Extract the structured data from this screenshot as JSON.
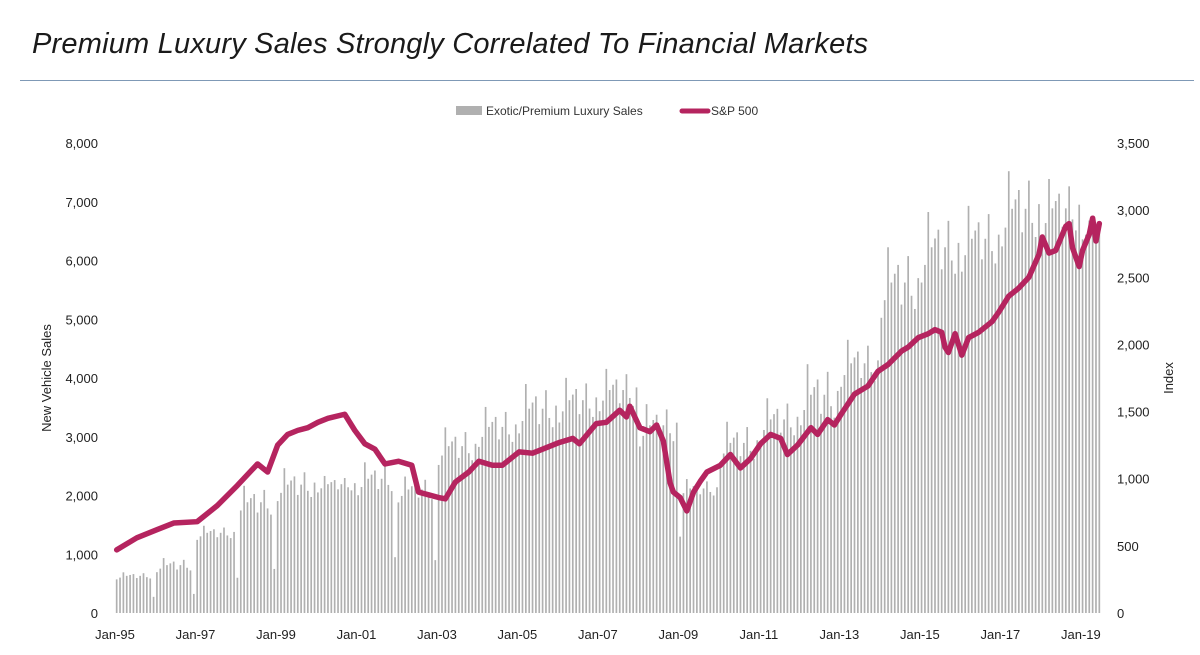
{
  "header": {
    "title": "Premium Luxury Sales Strongly Correlated To Financial Markets"
  },
  "colors": {
    "bars": "#b0b0b0",
    "line": "#b5245f",
    "rule": "#7f99b6"
  },
  "chart_data": {
    "type": "bar+line",
    "legend": {
      "position": "top-center",
      "entries": [
        "Exotic/Premium Luxury Sales",
        "S&P 500"
      ]
    },
    "xlabel": "",
    "ylabel": "New Vehicle Sales",
    "y2label": "Index",
    "ylim": [
      0,
      8000
    ],
    "y2lim": [
      0,
      3500
    ],
    "yticks": [
      "8,000",
      "7,000",
      "6,000",
      "5,000",
      "4,000",
      "3,000",
      "2,000",
      "1,000",
      "0"
    ],
    "y2ticks": [
      "3,500",
      "3,000",
      "2,500",
      "2,000",
      "1,500",
      "1,000",
      "500",
      "0"
    ],
    "xticks": [
      "Jan-95",
      "Jan-97",
      "Jan-99",
      "Jan-01",
      "Jan-03",
      "Jan-05",
      "Jan-07",
      "Jan-09",
      "Jan-11",
      "Jan-13",
      "Jan-15",
      "Jan-17",
      "Jan-19"
    ],
    "x_start": "Jan-95",
    "x_end": "Jun-19",
    "series": [
      {
        "name": "Exotic/Premium Luxury Sales",
        "kind": "bar",
        "axis": "left",
        "frequency": "monthly",
        "annual_baseline": [
          {
            "year": 1995,
            "value": 550
          },
          {
            "year": 1996,
            "value": 650
          },
          {
            "year": 1997,
            "value": 1200
          },
          {
            "year": 1998,
            "value": 1500
          },
          {
            "year": 1999,
            "value": 1800
          },
          {
            "year": 2000,
            "value": 2000
          },
          {
            "year": 2001,
            "value": 1900
          },
          {
            "year": 2002,
            "value": 1800
          },
          {
            "year": 2003,
            "value": 2400
          },
          {
            "year": 2004,
            "value": 2700
          },
          {
            "year": 2005,
            "value": 2900
          },
          {
            "year": 2006,
            "value": 3100
          },
          {
            "year": 2007,
            "value": 3300
          },
          {
            "year": 2008,
            "value": 2700
          },
          {
            "year": 2009,
            "value": 1900
          },
          {
            "year": 2010,
            "value": 2400
          },
          {
            "year": 2011,
            "value": 2800
          },
          {
            "year": 2012,
            "value": 3000
          },
          {
            "year": 2013,
            "value": 3700
          },
          {
            "year": 2014,
            "value": 4800
          },
          {
            "year": 2015,
            "value": 5400
          },
          {
            "year": 2016,
            "value": 5600
          },
          {
            "year": 2017,
            "value": 6000
          },
          {
            "year": 2018,
            "value": 6200
          },
          {
            "year": 2019,
            "value": 6300
          }
        ],
        "annual_peak": [
          {
            "year": 1995,
            "value": 700
          },
          {
            "year": 1996,
            "value": 950
          },
          {
            "year": 1997,
            "value": 1500
          },
          {
            "year": 1998,
            "value": 2200
          },
          {
            "year": 1999,
            "value": 2500
          },
          {
            "year": 2000,
            "value": 2350
          },
          {
            "year": 2001,
            "value": 2600
          },
          {
            "year": 2002,
            "value": 2350
          },
          {
            "year": 2003,
            "value": 3200
          },
          {
            "year": 2004,
            "value": 3550
          },
          {
            "year": 2005,
            "value": 3950
          },
          {
            "year": 2006,
            "value": 4050
          },
          {
            "year": 2007,
            "value": 4200
          },
          {
            "year": 2008,
            "value": 3600
          },
          {
            "year": 2009,
            "value": 2300
          },
          {
            "year": 2010,
            "value": 3300
          },
          {
            "year": 2011,
            "value": 3700
          },
          {
            "year": 2012,
            "value": 4300
          },
          {
            "year": 2013,
            "value": 4700
          },
          {
            "year": 2014,
            "value": 6300
          },
          {
            "year": 2015,
            "value": 6900
          },
          {
            "year": 2016,
            "value": 7000
          },
          {
            "year": 2017,
            "value": 7600
          },
          {
            "year": 2018,
            "value": 7450
          },
          {
            "year": 2019,
            "value": 6700
          }
        ]
      },
      {
        "name": "S&P 500",
        "kind": "line",
        "axis": "right",
        "points": [
          [
            "Jan-95",
            470
          ],
          [
            "Jul-95",
            560
          ],
          [
            "Jan-96",
            620
          ],
          [
            "Jun-96",
            670
          ],
          [
            "Jan-97",
            680
          ],
          [
            "Jul-97",
            800
          ],
          [
            "Jan-98",
            950
          ],
          [
            "Jul-98",
            1110
          ],
          [
            "Oct-98",
            1050
          ],
          [
            "Jan-99",
            1250
          ],
          [
            "Apr-99",
            1330
          ],
          [
            "Jul-99",
            1360
          ],
          [
            "Oct-99",
            1380
          ],
          [
            "Jan-00",
            1420
          ],
          [
            "Apr-00",
            1450
          ],
          [
            "Sep-00",
            1480
          ],
          [
            "Dec-00",
            1360
          ],
          [
            "Mar-01",
            1260
          ],
          [
            "Jun-01",
            1220
          ],
          [
            "Sep-01",
            1110
          ],
          [
            "Jan-02",
            1130
          ],
          [
            "May-02",
            1100
          ],
          [
            "Jul-02",
            900
          ],
          [
            "Oct-02",
            880
          ],
          [
            "Jan-03",
            860
          ],
          [
            "Mar-03",
            850
          ],
          [
            "Jun-03",
            975
          ],
          [
            "Oct-03",
            1050
          ],
          [
            "Jan-04",
            1130
          ],
          [
            "May-04",
            1100
          ],
          [
            "Aug-04",
            1100
          ],
          [
            "Jan-05",
            1200
          ],
          [
            "May-05",
            1190
          ],
          [
            "Sep-05",
            1230
          ],
          [
            "Jan-06",
            1270
          ],
          [
            "May-06",
            1300
          ],
          [
            "Jul-06",
            1260
          ],
          [
            "Dec-06",
            1410
          ],
          [
            "Mar-07",
            1420
          ],
          [
            "Jul-07",
            1510
          ],
          [
            "Sep-07",
            1460
          ],
          [
            "Oct-07",
            1540
          ],
          [
            "Jan-08",
            1380
          ],
          [
            "Apr-08",
            1350
          ],
          [
            "Jun-08",
            1400
          ],
          [
            "Aug-08",
            1280
          ],
          [
            "Oct-08",
            970
          ],
          [
            "Nov-08",
            900
          ],
          [
            "Jan-09",
            860
          ],
          [
            "Mar-09",
            760
          ],
          [
            "May-09",
            900
          ],
          [
            "Jul-09",
            980
          ],
          [
            "Sep-09",
            1050
          ],
          [
            "Jan-10",
            1100
          ],
          [
            "Apr-10",
            1180
          ],
          [
            "Jul-10",
            1080
          ],
          [
            "Oct-10",
            1150
          ],
          [
            "Jan-11",
            1260
          ],
          [
            "Apr-11",
            1330
          ],
          [
            "Jul-11",
            1300
          ],
          [
            "Sep-11",
            1180
          ],
          [
            "Dec-11",
            1250
          ],
          [
            "Apr-12",
            1380
          ],
          [
            "Jun-12",
            1330
          ],
          [
            "Sep-12",
            1440
          ],
          [
            "Nov-12",
            1400
          ],
          [
            "Jan-13",
            1480
          ],
          [
            "May-13",
            1630
          ],
          [
            "Sep-13",
            1690
          ],
          [
            "Dec-13",
            1800
          ],
          [
            "Mar-14",
            1850
          ],
          [
            "Jul-14",
            1950
          ],
          [
            "Sep-14",
            1980
          ],
          [
            "Dec-14",
            2050
          ],
          [
            "Mar-15",
            2080
          ],
          [
            "May-15",
            2110
          ],
          [
            "Jul-15",
            2090
          ],
          [
            "Aug-15",
            1980
          ],
          [
            "Sep-15",
            1940
          ],
          [
            "Nov-15",
            2080
          ],
          [
            "Jan-16",
            1920
          ],
          [
            "Mar-16",
            2050
          ],
          [
            "Jun-16",
            2090
          ],
          [
            "Oct-16",
            2170
          ],
          [
            "Dec-16",
            2240
          ],
          [
            "Mar-17",
            2360
          ],
          [
            "Jun-17",
            2420
          ],
          [
            "Sep-17",
            2500
          ],
          [
            "Dec-17",
            2670
          ],
          [
            "Jan-18",
            2800
          ],
          [
            "Mar-18",
            2680
          ],
          [
            "May-18",
            2700
          ],
          [
            "Aug-18",
            2880
          ],
          [
            "Sep-18",
            2900
          ],
          [
            "Oct-18",
            2720
          ],
          [
            "Dec-18",
            2580
          ],
          [
            "Jan-19",
            2700
          ],
          [
            "Mar-19",
            2820
          ],
          [
            "Apr-19",
            2940
          ],
          [
            "May-19",
            2770
          ],
          [
            "Jun-19",
            2900
          ]
        ]
      }
    ]
  }
}
